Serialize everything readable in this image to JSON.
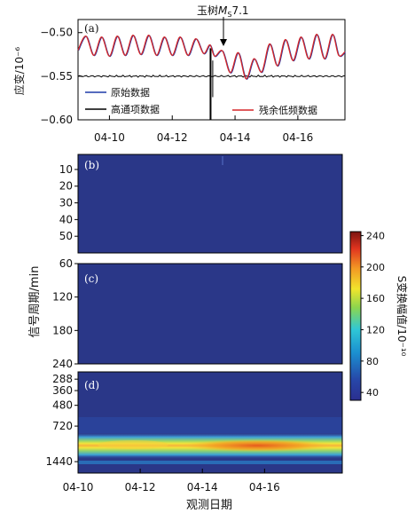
{
  "chart_data": [
    {
      "panel": "a",
      "type": "line",
      "panel_label": "(a)",
      "ylabel": "应变/10⁻⁶",
      "yticks": [
        "−0.50",
        "−0.55",
        "−0.60"
      ],
      "ylim": [
        -0.6,
        -0.485
      ],
      "xlim": [
        0,
        8.5
      ],
      "annotation": "玉树M_S7.1",
      "annotation_x": 4.2,
      "series": [
        {
          "name": "原始数据",
          "color": "#1f3aa8"
        },
        {
          "name": "高通项数据",
          "color": "#000000"
        },
        {
          "name": "残余低频数据",
          "color": "#d62728"
        }
      ],
      "residual_low_freq": [
        {
          "x": 0.0,
          "y": -0.52
        },
        {
          "x": 0.25,
          "y": -0.504
        },
        {
          "x": 0.5,
          "y": -0.526
        },
        {
          "x": 0.75,
          "y": -0.505
        },
        {
          "x": 1.0,
          "y": -0.527
        },
        {
          "x": 1.25,
          "y": -0.504
        },
        {
          "x": 1.5,
          "y": -0.526
        },
        {
          "x": 1.75,
          "y": -0.503
        },
        {
          "x": 2.0,
          "y": -0.525
        },
        {
          "x": 2.25,
          "y": -0.503
        },
        {
          "x": 2.5,
          "y": -0.526
        },
        {
          "x": 2.75,
          "y": -0.505
        },
        {
          "x": 3.0,
          "y": -0.526
        },
        {
          "x": 3.25,
          "y": -0.505
        },
        {
          "x": 3.5,
          "y": -0.526
        },
        {
          "x": 3.75,
          "y": -0.507
        },
        {
          "x": 4.0,
          "y": -0.524
        },
        {
          "x": 4.2,
          "y": -0.514
        },
        {
          "x": 4.35,
          "y": -0.527
        },
        {
          "x": 4.6,
          "y": -0.521
        },
        {
          "x": 4.85,
          "y": -0.546
        },
        {
          "x": 5.1,
          "y": -0.523
        },
        {
          "x": 5.35,
          "y": -0.553
        },
        {
          "x": 5.6,
          "y": -0.53
        },
        {
          "x": 5.85,
          "y": -0.545
        },
        {
          "x": 6.1,
          "y": -0.513
        },
        {
          "x": 6.35,
          "y": -0.538
        },
        {
          "x": 6.6,
          "y": -0.508
        },
        {
          "x": 6.85,
          "y": -0.532
        },
        {
          "x": 7.1,
          "y": -0.505
        },
        {
          "x": 7.35,
          "y": -0.53
        },
        {
          "x": 7.6,
          "y": -0.502
        },
        {
          "x": 7.85,
          "y": -0.53
        },
        {
          "x": 8.1,
          "y": -0.502
        },
        {
          "x": 8.3,
          "y": -0.526
        },
        {
          "x": 8.5,
          "y": -0.522
        }
      ],
      "high_pass_baseline": -0.55,
      "spike_x": 4.22,
      "spike_range": [
        -0.6,
        -0.518
      ]
    },
    {
      "panel": "b",
      "type": "heatmap",
      "panel_label": "(b)",
      "yticks": [
        "10",
        "20",
        "30",
        "40",
        "50"
      ],
      "ylim": [
        1,
        60
      ],
      "value": "uniform low amplitude"
    },
    {
      "panel": "c",
      "type": "heatmap",
      "panel_label": "(c)",
      "yticks": [
        "60",
        "120",
        "180",
        "240"
      ],
      "ylim": [
        60,
        240
      ],
      "value": "uniform low amplitude"
    },
    {
      "panel": "d",
      "type": "heatmap",
      "panel_label": "(d)",
      "yticks": [
        "288",
        "360",
        "480",
        "720",
        "1440"
      ],
      "log_scale": true,
      "band_center_min": 720,
      "band_peak_amplitude": 200
    }
  ],
  "shared": {
    "xticks": [
      "04-10",
      "04-12",
      "04-14",
      "04-16"
    ],
    "xlabel": "观测日期",
    "ylabel_bcd": "信号周期/min"
  },
  "colorbar": {
    "label": "S变换幅值/10⁻¹⁰",
    "ticks": [
      "240",
      "200",
      "160",
      "120",
      "80",
      "40"
    ],
    "range": [
      30,
      245
    ],
    "colormap": "jet"
  },
  "legend": [
    "原始数据",
    "高通项数据",
    "残余低频数据"
  ]
}
